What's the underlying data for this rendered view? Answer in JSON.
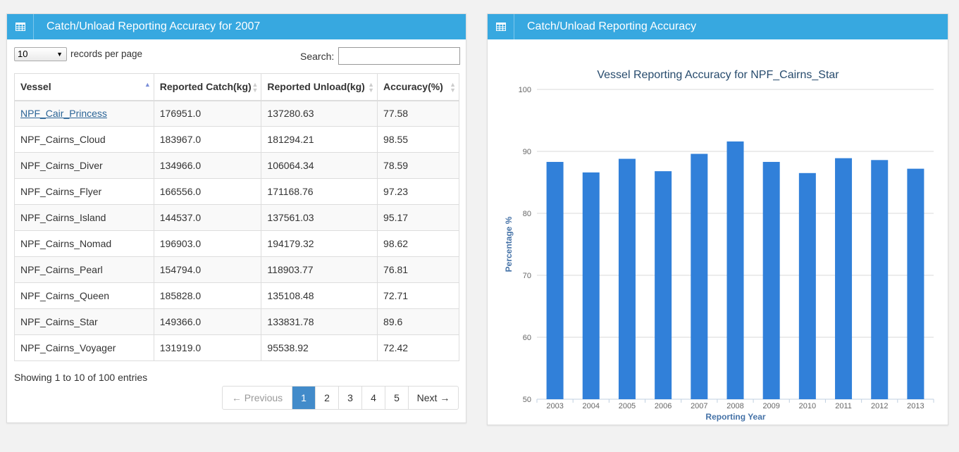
{
  "left_panel": {
    "title": "Catch/Unload Reporting Accuracy for 2007",
    "length_select_value": "10",
    "length_label": "records per page",
    "search_label": "Search:",
    "search_value": "",
    "columns": [
      "Vessel",
      "Reported Catch(kg)",
      "Reported Unload(kg)",
      "Accuracy(%)"
    ],
    "rows": [
      [
        "NPF_Cair_Princess",
        "176951.0",
        "137280.63",
        "77.58"
      ],
      [
        "NPF_Cairns_Cloud",
        "183967.0",
        "181294.21",
        "98.55"
      ],
      [
        "NPF_Cairns_Diver",
        "134966.0",
        "106064.34",
        "78.59"
      ],
      [
        "NPF_Cairns_Flyer",
        "166556.0",
        "171168.76",
        "97.23"
      ],
      [
        "NPF_Cairns_Island",
        "144537.0",
        "137561.03",
        "95.17"
      ],
      [
        "NPF_Cairns_Nomad",
        "196903.0",
        "194179.32",
        "98.62"
      ],
      [
        "NPF_Cairns_Pearl",
        "154794.0",
        "118903.77",
        "76.81"
      ],
      [
        "NPF_Cairns_Queen",
        "185828.0",
        "135108.48",
        "72.71"
      ],
      [
        "NPF_Cairns_Star",
        "149366.0",
        "133831.78",
        "89.6"
      ],
      [
        "NPF_Cairns_Voyager",
        "131919.0",
        "95538.92",
        "72.42"
      ]
    ],
    "info": "Showing 1 to 10 of 100 entries",
    "pager": {
      "prev": "← Previous",
      "pages": [
        "1",
        "2",
        "3",
        "4",
        "5"
      ],
      "active_page": "1",
      "next": "Next →"
    }
  },
  "right_panel": {
    "title": "Catch/Unload Reporting Accuracy"
  },
  "chart_data": {
    "type": "bar",
    "title": "Vessel Reporting Accuracy for NPF_Cairns_Star",
    "xlabel": "Reporting Year",
    "ylabel": "Percentage %",
    "categories": [
      "2003",
      "2004",
      "2005",
      "2006",
      "2007",
      "2008",
      "2009",
      "2010",
      "2011",
      "2012",
      "2013"
    ],
    "values": [
      88.3,
      86.6,
      88.8,
      86.8,
      89.6,
      91.6,
      88.3,
      86.5,
      88.9,
      88.6,
      87.2
    ],
    "ylim": [
      50,
      100
    ],
    "yticks": [
      "50",
      "60",
      "70",
      "80",
      "90",
      "100"
    ],
    "grid": true,
    "bar_color": "#3180d9",
    "title_color": "#274b6d",
    "label_color": "#4572a7"
  },
  "colors": {
    "header": "#37a8e0",
    "active_page": "#428bca",
    "link": "#2a6496"
  }
}
